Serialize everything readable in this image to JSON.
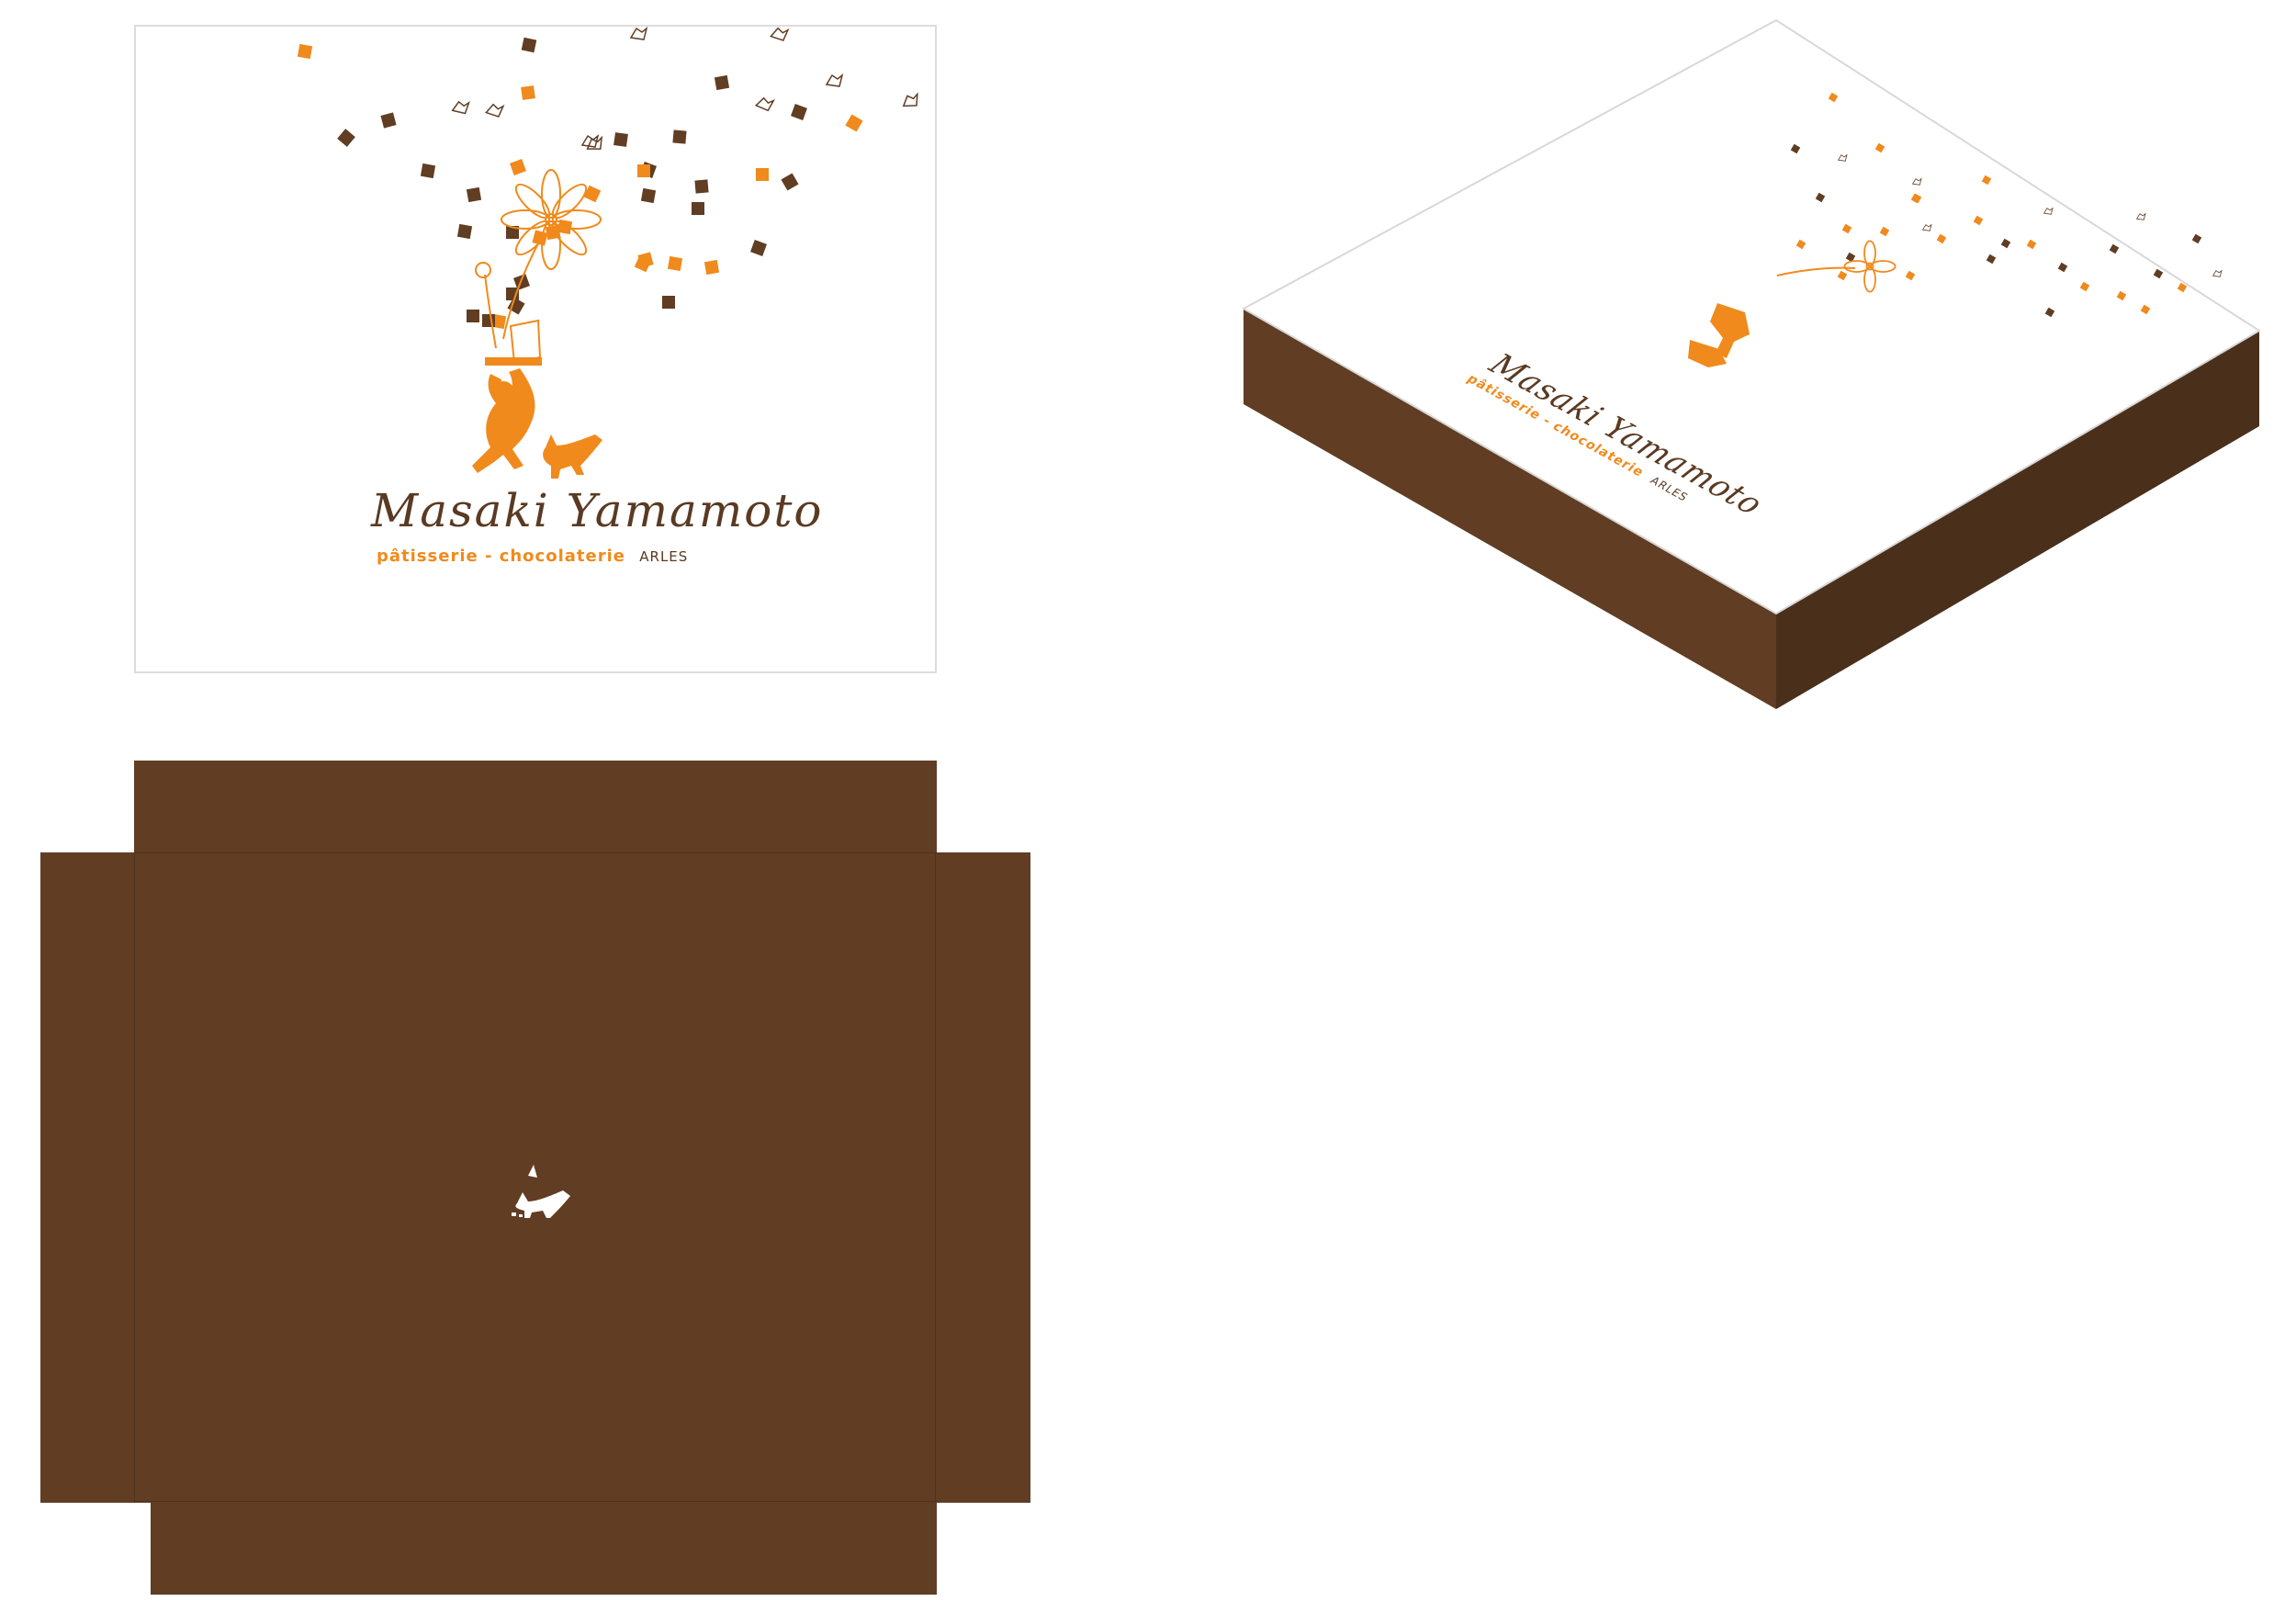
{
  "brand": {
    "name": "Masaki Yamamoto",
    "tagline": "pâtisserie - chocolaterie",
    "city": "ARLES"
  },
  "colors": {
    "brown": "#603d23",
    "brown_dark": "#4a2f1b",
    "orange": "#f08a1c",
    "ink": "#5a3a22",
    "white": "#ffffff"
  },
  "views": {
    "lid_flat": {
      "icon": "chef-and-dog-illustration-icon"
    },
    "box_isometric": {
      "icon": "chef-and-dog-illustration-icon"
    },
    "box_net": {
      "icon": "dog-icon"
    }
  }
}
